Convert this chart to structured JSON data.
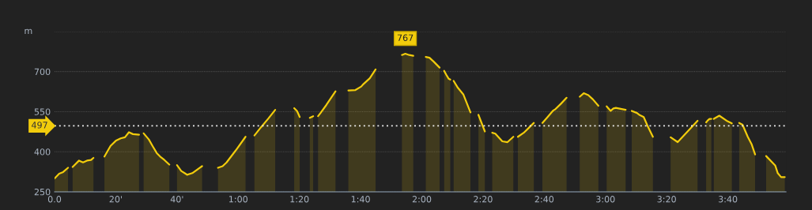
{
  "chart_data": {
    "type": "area",
    "ylabel": "m",
    "series": [
      {
        "color": "#f2cc0c",
        "x": [
          0,
          1.5,
          2.8,
          4.4,
          5.1,
          5.9,
          8.0,
          9.3,
          10.6,
          11.9,
          12.7,
          14.5,
          16.3,
          18.3,
          20.0,
          21.6,
          23.0,
          24.3,
          25.6,
          27.6,
          28.4,
          29.1,
          30.8,
          32.1,
          33.4,
          34.5,
          35.9,
          37.5,
          38.8,
          40.0,
          41.4,
          42.8,
          43.3,
          45.0,
          48.2,
          51,
          53.4,
          54.9,
          56.2,
          59.2,
          62.4,
          64,
          65.3,
          67.4,
          69.9,
          72.1,
          75,
          78.3,
          79.2,
          79.6,
          80.1,
          82,
          83.4,
          84.5,
          85.3,
          86.1,
          86.9,
          88.8,
          91.8,
          94,
          96.0,
          98.3,
          100.2,
          100.9,
          103.0,
          104.9,
          110,
          113.5,
          114.6,
          115.9,
          117.2,
          119,
          121.3,
          122.5,
          123.9,
          125.8,
          126.5,
          127.3,
          128.0,
          128.8,
          129.3,
          129.9,
          130.4,
          131.8,
          133.6,
          135.9,
          137,
          138.5,
          140.6,
          141.8,
          143.0,
          144.0,
          146.3,
          148.0,
          149.9,
          150.6,
          151.4,
          153.3,
          155.1,
          156.6,
          158,
          159.4,
          161.1,
          162.8,
          163.7,
          165.4,
          167.3,
          169.5,
          171.6,
          172.9,
          174.4,
          175.9,
          177.7,
          179,
          180.4,
          181.7,
          182.6,
          183.4,
          186.6,
          187.6,
          188.6,
          190.3,
          191.2,
          192.5,
          193.8,
          195.5,
          198,
          201.3,
          203.6,
          210.1,
          211.5,
          212.9,
          213.4,
          214.0,
          214.6,
          215,
          215.4,
          217.2,
          219.6,
          221.3,
          222.5,
          223.7,
          224.8,
          226.5,
          227.8,
          228.9,
          230.5,
          232.5,
          235.5,
          236.3,
          237.4,
          238.6
        ],
        "values": [
          300,
          318,
          324,
          340,
          null,
          343,
          367,
          360,
          367,
          369,
          377,
          null,
          382,
          422,
          441,
          450,
          454,
          473,
          466,
          464,
          null,
          469,
          446,
          420,
          395,
          382,
          369,
          352,
          null,
          350,
          328,
          318,
          314,
          320,
          346,
          null,
          340,
          346,
          360,
          405,
          456,
          null,
          461,
          491,
          525,
          557,
          null,
          563,
          553,
          543,
          530,
          null,
          527,
          533,
          null,
          533,
          545,
          575,
          626,
          null,
          629,
          631,
          644,
          653,
          675,
          708,
          null,
          762,
          767,
          762,
          759,
          null,
          755,
          752,
          737,
          715,
          null,
          703,
          688,
          673,
          670,
          null,
          665,
          639,
          614,
          547,
          null,
          538,
          476,
          null,
          471,
          468,
          439,
          436,
          456,
          null,
          456,
          471,
          491,
          508,
          null,
          508,
          530,
          553,
          560,
          579,
          602,
          null,
          606,
          619,
          612,
          596,
          572,
          null,
          570,
          553,
          562,
          564,
          557,
          null,
          553,
          545,
          537,
          530,
          496,
          456,
          null,
          454,
          436,
          516,
          null,
          510,
          517,
          523,
          523,
          null,
          523,
          535,
          516,
          506,
          null,
          508,
          501,
          456,
          427,
          390,
          null,
          384,
          348,
          320,
          305,
          305
        ]
      }
    ],
    "xlim": [
      0,
      239
    ],
    "xticks": [
      {
        "value": 0,
        "label": "0.0"
      },
      {
        "value": 20,
        "label": "20'"
      },
      {
        "value": 40,
        "label": "40'"
      },
      {
        "value": 60,
        "label": "1:00"
      },
      {
        "value": 80,
        "label": "1:20"
      },
      {
        "value": 100,
        "label": "1:40"
      },
      {
        "value": 120,
        "label": "2:00"
      },
      {
        "value": 140,
        "label": "2:20"
      },
      {
        "value": 160,
        "label": "2:40"
      },
      {
        "value": 180,
        "label": "3:00"
      },
      {
        "value": 200,
        "label": "3:20"
      },
      {
        "value": 220,
        "label": "3:40"
      }
    ],
    "ylim": [
      250,
      850
    ],
    "yticks": [
      250,
      400,
      550,
      700
    ],
    "grid": "y",
    "ref_lines": [
      {
        "axis": "y",
        "value": 497,
        "label": "497",
        "color": "#f0f0f0",
        "line_style": "dotted"
      }
    ],
    "annotations": [
      {
        "text": "767",
        "x": 114.6,
        "y": 767
      }
    ]
  }
}
